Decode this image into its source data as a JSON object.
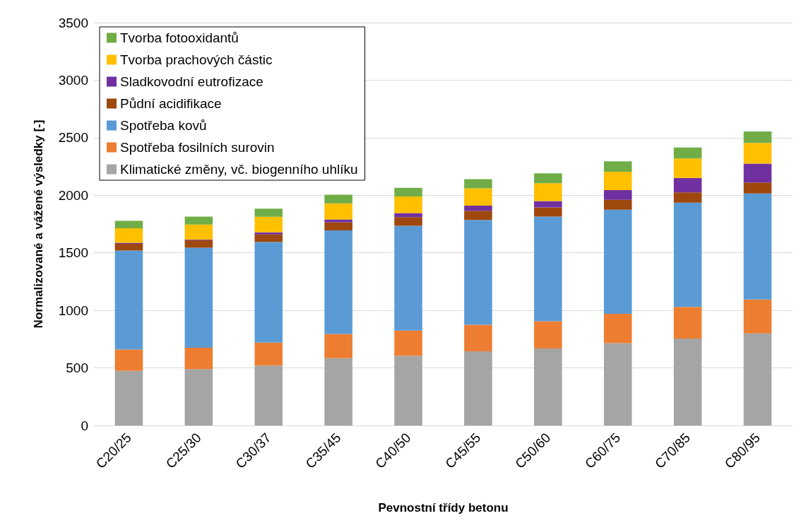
{
  "chart_data": {
    "type": "bar",
    "stacked": true,
    "xlabel": "Pevnostní třídy betonu",
    "ylabel": "Normalizované a vážené výsledky [-]",
    "categories": [
      "C20/25",
      "C25/30",
      "C30/37",
      "C35/45",
      "C40/50",
      "C45/55",
      "C50/60",
      "C60/75",
      "C70/85",
      "C80/95"
    ],
    "series": [
      {
        "name": "Klimatické změny, vč. biogenního uhlíku",
        "color": "#a5a5a5",
        "values": [
          475,
          490,
          520,
          585,
          605,
          645,
          670,
          715,
          755,
          800
        ]
      },
      {
        "name": "Spotřeba fosilních surovin",
        "color": "#ed7d31",
        "values": [
          185,
          185,
          200,
          210,
          220,
          230,
          235,
          255,
          275,
          295
        ]
      },
      {
        "name": "Spotřeba kovů",
        "color": "#5b9bd5",
        "values": [
          860,
          870,
          875,
          900,
          910,
          910,
          910,
          905,
          905,
          920
        ]
      },
      {
        "name": "Půdní acidifikace",
        "color": "#9e480e",
        "values": [
          58,
          65,
          65,
          70,
          75,
          80,
          80,
          85,
          90,
          95
        ]
      },
      {
        "name": "Sladkovodní eutrofizace",
        "color": "#7030a0",
        "values": [
          10,
          5,
          18,
          25,
          35,
          45,
          55,
          85,
          125,
          165
        ]
      },
      {
        "name": "Tvorba prachových částic",
        "color": "#ffc000",
        "values": [
          125,
          130,
          135,
          140,
          145,
          150,
          155,
          160,
          170,
          180
        ]
      },
      {
        "name": "Tvorba fotooxidantů",
        "color": "#70ad47",
        "values": [
          65,
          70,
          70,
          75,
          75,
          80,
          85,
          90,
          95,
          100
        ]
      }
    ],
    "ylim": [
      0,
      3500
    ],
    "yticks": [
      0,
      500,
      1000,
      1500,
      2000,
      2500,
      3000,
      3500
    ],
    "grid": "y",
    "legend": "top left"
  }
}
